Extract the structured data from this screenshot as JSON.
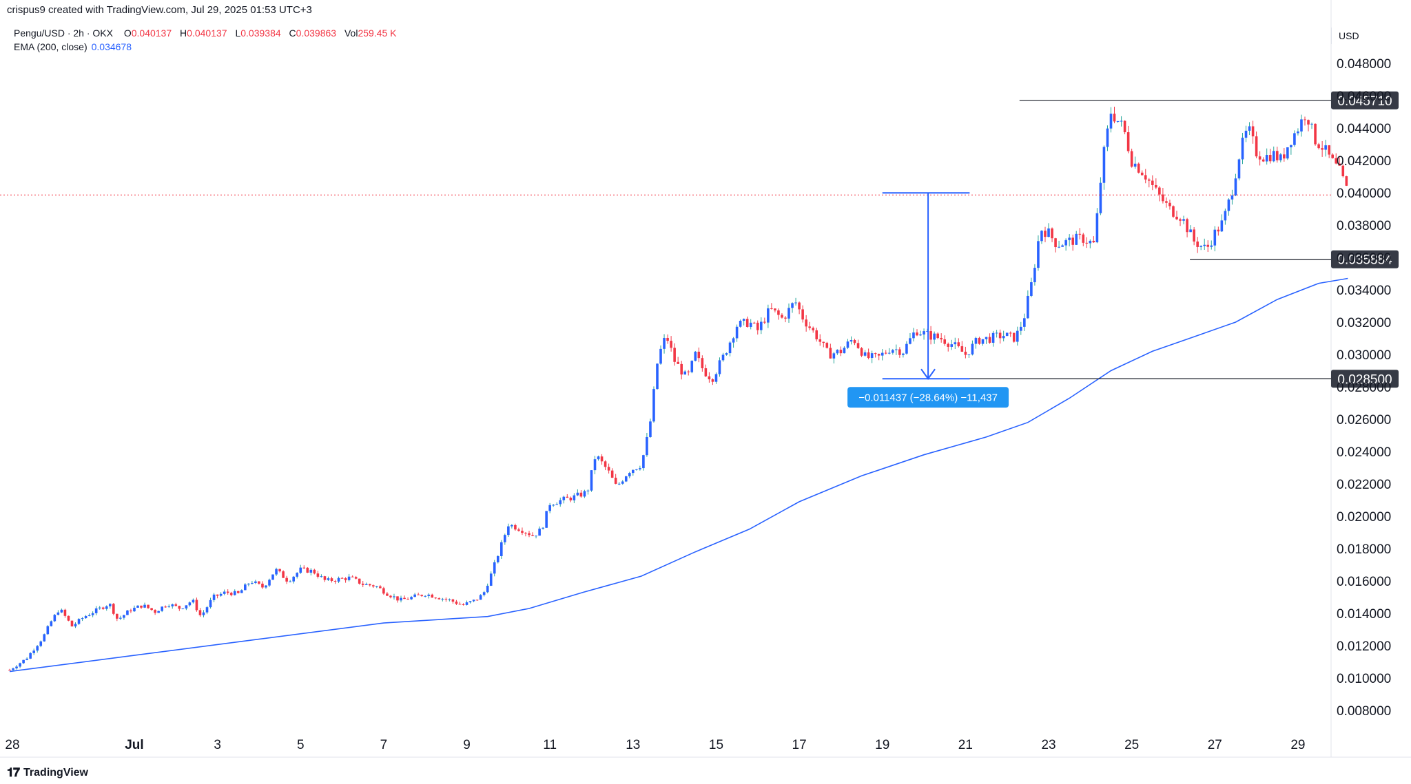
{
  "header": {
    "attribution": "crispus9 created with TradingView.com, Jul 29, 2025 01:53 UTC+3"
  },
  "legend": {
    "symbol": "Pengu/USD · 2h · OKX",
    "o_label": "O",
    "o_value": "0.040137",
    "h_label": "H",
    "h_value": "0.040137",
    "l_label": "L",
    "l_value": "0.039384",
    "c_label": "C",
    "c_value": "0.039863",
    "vol_label": "Vol",
    "vol_value": "259.45 K",
    "ema_label": "EMA (200, close)",
    "ema_value": "0.034678"
  },
  "price_axis": {
    "currency": "USD",
    "ticks": [
      "0.048000",
      "0.046000",
      "0.044000",
      "0.042000",
      "0.040000",
      "0.038000",
      "0.036000",
      "0.034000",
      "0.032000",
      "0.030000",
      "0.028000",
      "0.026000",
      "0.024000",
      "0.022000",
      "0.020000",
      "0.018000",
      "0.016000",
      "0.014000",
      "0.012000",
      "0.010000",
      "0.008000"
    ]
  },
  "levels": [
    {
      "label": "0.045710",
      "value": 0.04571
    },
    {
      "label": "0.035884",
      "value": 0.035884
    },
    {
      "label": "0.028500",
      "value": 0.0285
    }
  ],
  "measure": {
    "label": "−0.011437 (−28.64%) −11,437",
    "from_value": 0.03999,
    "to_value": 0.0285
  },
  "colors": {
    "up": "#26a69a",
    "up_body": "#2962ff",
    "down": "#f23645",
    "ema": "#2962ff",
    "level": "#131722",
    "label_bg": "#363a45"
  },
  "footer": {
    "brand": "TradingView",
    "logo_icon": "tradingview-logo-icon"
  },
  "chart_data": {
    "type": "candlestick",
    "title": "Pengu/USD · 2h · OKX",
    "x_unit": "date",
    "x_ticks": [
      {
        "label": "28",
        "day": 0
      },
      {
        "label": "Jul",
        "day": 3
      },
      {
        "label": "3",
        "day": 5
      },
      {
        "label": "5",
        "day": 7
      },
      {
        "label": "7",
        "day": 9
      },
      {
        "label": "9",
        "day": 11
      },
      {
        "label": "11",
        "day": 13
      },
      {
        "label": "13",
        "day": 15
      },
      {
        "label": "15",
        "day": 17
      },
      {
        "label": "17",
        "day": 19
      },
      {
        "label": "19",
        "day": 21
      },
      {
        "label": "21",
        "day": 23
      },
      {
        "label": "23",
        "day": 25
      },
      {
        "label": "25",
        "day": 27
      },
      {
        "label": "27",
        "day": 29
      },
      {
        "label": "29",
        "day": 31
      }
    ],
    "ylim": [
      0.0068,
      0.0495
    ],
    "price_path": [
      [
        0.0,
        0.0105
      ],
      [
        0.4,
        0.0112
      ],
      [
        0.8,
        0.0125
      ],
      [
        1.0,
        0.0135
      ],
      [
        1.2,
        0.0143
      ],
      [
        1.5,
        0.0132
      ],
      [
        1.8,
        0.0138
      ],
      [
        2.1,
        0.0142
      ],
      [
        2.4,
        0.0146
      ],
      [
        2.6,
        0.0136
      ],
      [
        2.9,
        0.0142
      ],
      [
        3.2,
        0.0145
      ],
      [
        3.5,
        0.0141
      ],
      [
        3.8,
        0.0146
      ],
      [
        4.1,
        0.0143
      ],
      [
        4.4,
        0.0148
      ],
      [
        4.6,
        0.0138
      ],
      [
        4.9,
        0.015
      ],
      [
        5.2,
        0.0153
      ],
      [
        5.5,
        0.0152
      ],
      [
        5.8,
        0.016
      ],
      [
        6.1,
        0.0156
      ],
      [
        6.4,
        0.0167
      ],
      [
        6.7,
        0.016
      ],
      [
        7.0,
        0.0167
      ],
      [
        7.3,
        0.0166
      ],
      [
        7.6,
        0.016
      ],
      [
        7.9,
        0.0161
      ],
      [
        8.2,
        0.0162
      ],
      [
        8.5,
        0.0158
      ],
      [
        8.8,
        0.0157
      ],
      [
        9.1,
        0.0152
      ],
      [
        9.4,
        0.0148
      ],
      [
        9.7,
        0.015
      ],
      [
        10.0,
        0.0152
      ],
      [
        10.3,
        0.015
      ],
      [
        10.6,
        0.0148
      ],
      [
        10.9,
        0.0145
      ],
      [
        11.2,
        0.0148
      ],
      [
        11.4,
        0.0152
      ],
      [
        11.6,
        0.0165
      ],
      [
        11.8,
        0.018
      ],
      [
        12.0,
        0.0195
      ],
      [
        12.3,
        0.0192
      ],
      [
        12.6,
        0.0188
      ],
      [
        12.8,
        0.0192
      ],
      [
        13.0,
        0.0208
      ],
      [
        13.3,
        0.021
      ],
      [
        13.6,
        0.0212
      ],
      [
        13.9,
        0.0215
      ],
      [
        14.1,
        0.0238
      ],
      [
        14.4,
        0.0228
      ],
      [
        14.6,
        0.0218
      ],
      [
        14.9,
        0.0228
      ],
      [
        15.2,
        0.0232
      ],
      [
        15.4,
        0.0255
      ],
      [
        15.6,
        0.0298
      ],
      [
        15.8,
        0.0312
      ],
      [
        16.0,
        0.0296
      ],
      [
        16.3,
        0.0285
      ],
      [
        16.5,
        0.03
      ],
      [
        16.7,
        0.029
      ],
      [
        16.9,
        0.0285
      ],
      [
        17.2,
        0.03
      ],
      [
        17.5,
        0.0318
      ],
      [
        17.8,
        0.032
      ],
      [
        18.0,
        0.0315
      ],
      [
        18.3,
        0.0328
      ],
      [
        18.6,
        0.0322
      ],
      [
        18.9,
        0.0333
      ],
      [
        19.1,
        0.0322
      ],
      [
        19.4,
        0.0312
      ],
      [
        19.7,
        0.03
      ],
      [
        20.0,
        0.0302
      ],
      [
        20.3,
        0.031
      ],
      [
        20.6,
        0.0298
      ],
      [
        20.9,
        0.0298
      ],
      [
        21.2,
        0.0304
      ],
      [
        21.5,
        0.0302
      ],
      [
        21.8,
        0.0315
      ],
      [
        22.1,
        0.0312
      ],
      [
        22.4,
        0.031
      ],
      [
        22.7,
        0.0306
      ],
      [
        23.0,
        0.03
      ],
      [
        23.3,
        0.0309
      ],
      [
        23.6,
        0.031
      ],
      [
        23.9,
        0.0312
      ],
      [
        24.2,
        0.031
      ],
      [
        24.4,
        0.0322
      ],
      [
        24.6,
        0.0345
      ],
      [
        24.8,
        0.0378
      ],
      [
        25.0,
        0.0375
      ],
      [
        25.2,
        0.0368
      ],
      [
        25.5,
        0.037
      ],
      [
        25.8,
        0.0372
      ],
      [
        26.1,
        0.0368
      ],
      [
        26.3,
        0.042
      ],
      [
        26.5,
        0.045
      ],
      [
        26.8,
        0.044
      ],
      [
        27.0,
        0.042
      ],
      [
        27.3,
        0.0412
      ],
      [
        27.6,
        0.04
      ],
      [
        27.9,
        0.039
      ],
      [
        28.2,
        0.0385
      ],
      [
        28.5,
        0.037
      ],
      [
        28.8,
        0.0365
      ],
      [
        29.0,
        0.0375
      ],
      [
        29.2,
        0.0382
      ],
      [
        29.4,
        0.04
      ],
      [
        29.6,
        0.0425
      ],
      [
        29.8,
        0.044
      ],
      [
        30.0,
        0.0425
      ],
      [
        30.2,
        0.0422
      ],
      [
        30.4,
        0.0424
      ],
      [
        30.6,
        0.042
      ],
      [
        30.8,
        0.0432
      ],
      [
        31.0,
        0.044
      ],
      [
        31.2,
        0.045
      ],
      [
        31.4,
        0.0433
      ],
      [
        31.6,
        0.0428
      ],
      [
        31.8,
        0.042
      ],
      [
        32.0,
        0.0413
      ],
      [
        32.2,
        0.04
      ]
    ],
    "ema_series": {
      "name": "EMA (200, close)",
      "points": [
        [
          0.0,
          0.0104
        ],
        [
          3.0,
          0.0114
        ],
        [
          6.0,
          0.0124
        ],
        [
          9.0,
          0.0134
        ],
        [
          11.5,
          0.0138
        ],
        [
          12.5,
          0.0143
        ],
        [
          13.8,
          0.0153
        ],
        [
          15.2,
          0.0163
        ],
        [
          16.5,
          0.0178
        ],
        [
          17.8,
          0.0192
        ],
        [
          19.0,
          0.0209
        ],
        [
          20.5,
          0.0225
        ],
        [
          22.0,
          0.0238
        ],
        [
          23.5,
          0.0249
        ],
        [
          24.5,
          0.0258
        ],
        [
          25.5,
          0.0273
        ],
        [
          26.5,
          0.029
        ],
        [
          27.5,
          0.0302
        ],
        [
          28.5,
          0.0311
        ],
        [
          29.5,
          0.032
        ],
        [
          30.5,
          0.0334
        ],
        [
          31.5,
          0.0344
        ],
        [
          32.2,
          0.0347
        ]
      ]
    }
  }
}
